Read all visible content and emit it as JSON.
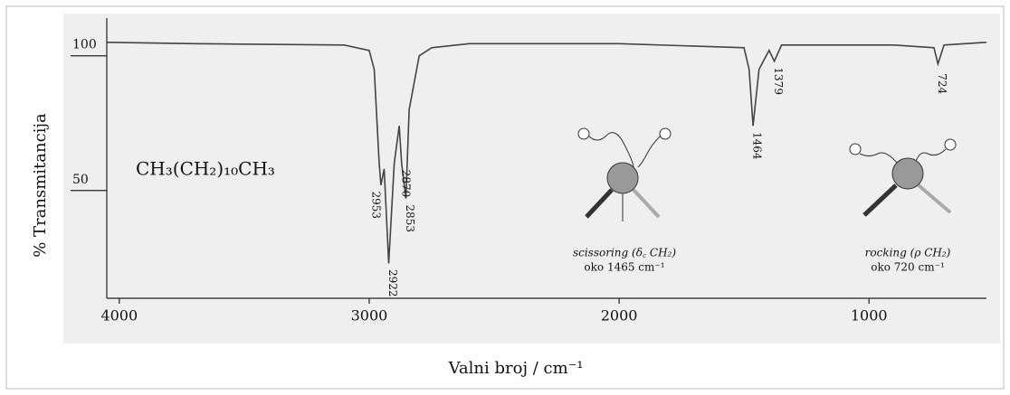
{
  "chart_data": {
    "type": "line",
    "xlabel": "Valni broj / cm⁻¹",
    "ylabel": "% Transmitancija",
    "formula": "CH₃(CH₂)₁₀CH₃",
    "x": [
      4050,
      3700,
      3100,
      3000,
      2980,
      2960,
      2953,
      2940,
      2922,
      2900,
      2880,
      2870,
      2853,
      2840,
      2800,
      2750,
      2600,
      2000,
      1500,
      1480,
      1464,
      1440,
      1400,
      1379,
      1350,
      900,
      740,
      724,
      700,
      530
    ],
    "values": [
      105,
      104.5,
      104,
      102,
      95,
      60,
      52,
      58,
      23,
      60,
      74,
      60,
      47,
      80,
      100,
      103,
      104.5,
      104.5,
      103,
      95,
      74,
      95,
      102,
      98,
      104,
      104,
      103,
      97,
      104,
      105
    ],
    "color": "#444444",
    "xlim": [
      4050,
      530
    ],
    "ylim": [
      10,
      114
    ],
    "xticks": [
      4000,
      3000,
      2000,
      1000
    ],
    "yticks": [
      50,
      100
    ],
    "peak_labels": [
      2953,
      2922,
      2853,
      2870,
      1464,
      1379,
      724
    ],
    "modes": [
      {
        "name": "scissoring (δ꜀ CH₂)",
        "note": "oko 1465 cm⁻¹"
      },
      {
        "name": "rocking (ρ CH₂)",
        "note": "oko 720 cm⁻¹"
      }
    ]
  }
}
